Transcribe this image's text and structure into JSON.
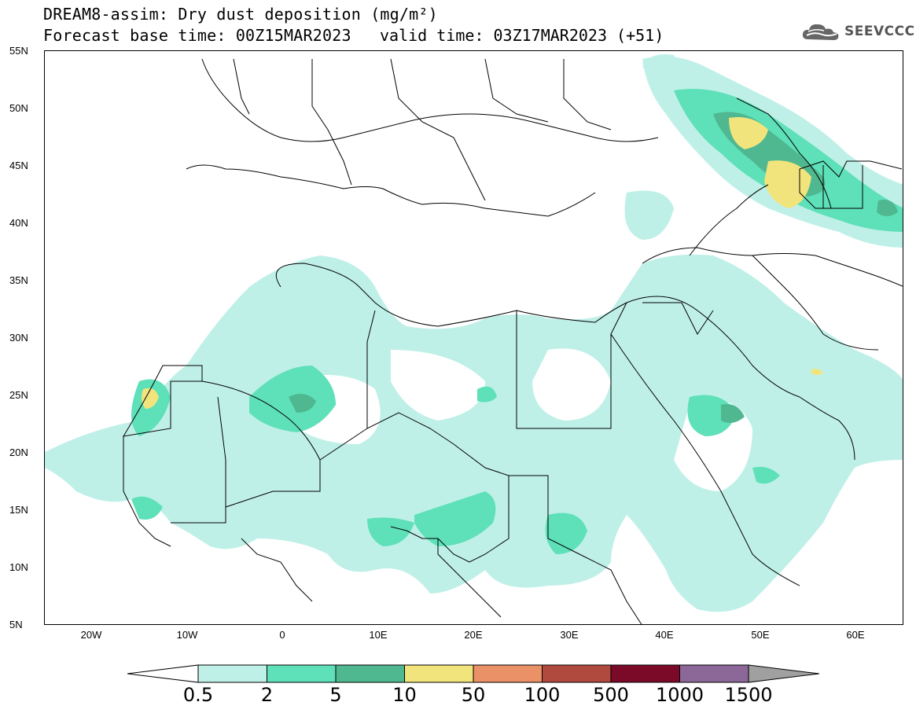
{
  "header": {
    "title_line1": "DREAM8-assim: Dry dust deposition (mg/m²)",
    "title_line2_left": "Forecast base time: 00Z15MAR2023",
    "title_line2_right": "valid time: 03Z17MAR2023 (+51)",
    "logo_text": "SEEVCCC",
    "logo_icon": "cloud-icon"
  },
  "map": {
    "lat_labels": [
      "55N",
      "50N",
      "45N",
      "40N",
      "35N",
      "30N",
      "25N",
      "20N",
      "15N",
      "10N",
      "5N"
    ],
    "lon_labels": [
      "20W",
      "10W",
      "0",
      "10E",
      "20E",
      "30E",
      "40E",
      "50E",
      "60E"
    ],
    "lat_range": [
      5,
      55
    ],
    "lon_range": [
      -25,
      65
    ]
  },
  "colorbar": {
    "colors": [
      "#bff0e8",
      "#5ee0b8",
      "#50b890",
      "#f2e47c",
      "#ea9168",
      "#b04a3e",
      "#7a0a28",
      "#8c6898",
      "#a0a0a0"
    ],
    "tick_labels": [
      "0.5",
      "2",
      "5",
      "10",
      "50",
      "100",
      "500",
      "1000",
      "1500"
    ]
  }
}
